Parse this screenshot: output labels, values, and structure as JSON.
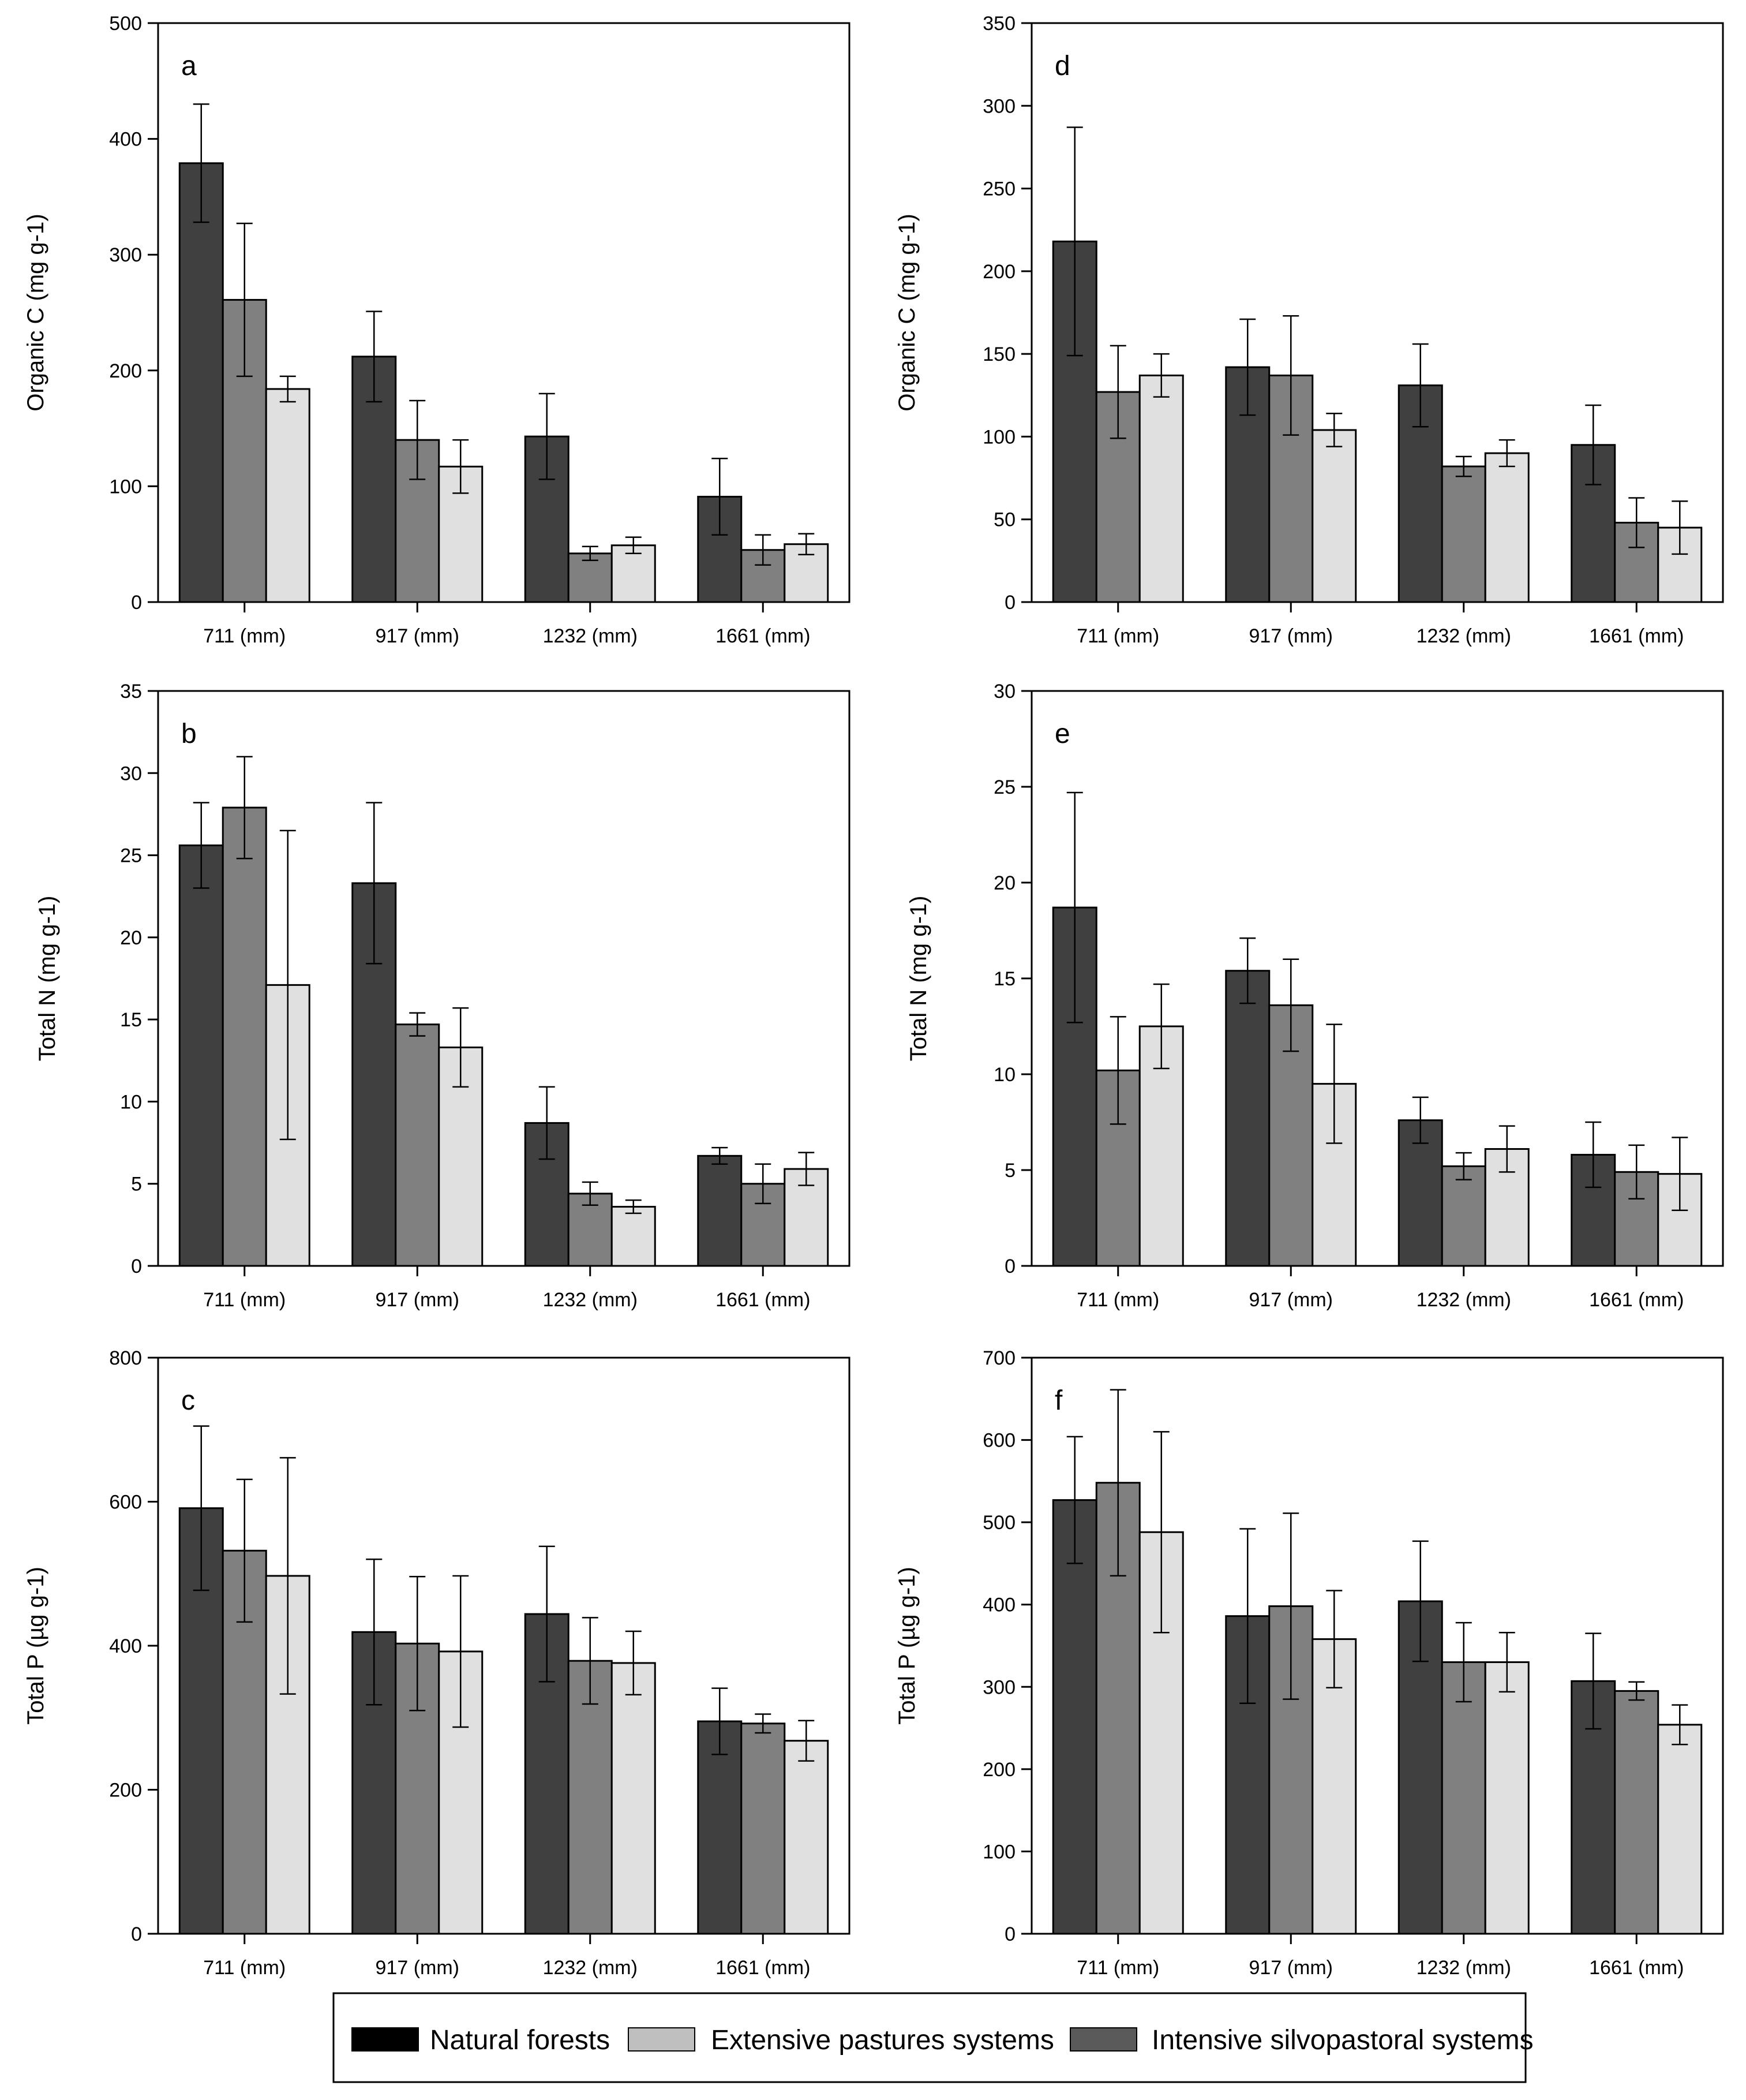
{
  "chart_data": [
    {
      "type": "bar",
      "panel": "a",
      "ylabel": "Organic C (mg g-1)",
      "ylim": [
        0,
        500
      ],
      "yticks": [
        "0",
        "100",
        "200",
        "300",
        "400",
        "500"
      ],
      "categories": [
        "711 (mm)",
        "917 (mm)",
        "1232 (mm)",
        "1661 (mm)"
      ],
      "series": [
        {
          "name": "Natural forests",
          "values": [
            379,
            212,
            143,
            91
          ],
          "errors": [
            51,
            39,
            37,
            33
          ]
        },
        {
          "name": "Intensive silvopastoral systems",
          "values": [
            261,
            140,
            42,
            45
          ],
          "errors": [
            66,
            34,
            6,
            13
          ]
        },
        {
          "name": "Extensive pastures systems",
          "values": [
            184,
            117,
            49,
            50
          ],
          "errors": [
            11,
            23,
            7,
            9
          ]
        }
      ]
    },
    {
      "type": "bar",
      "panel": "b",
      "ylabel": "Total N  (mg g-1)",
      "ylim": [
        0,
        35
      ],
      "yticks": [
        "0",
        "5",
        "10",
        "15",
        "20",
        "25",
        "30",
        "35"
      ],
      "categories": [
        "711 (mm)",
        "917 (mm)",
        "1232 (mm)",
        "1661 (mm)"
      ],
      "series": [
        {
          "name": "Natural forests",
          "values": [
            25.6,
            23.3,
            8.7,
            6.7
          ],
          "errors": [
            2.6,
            4.9,
            2.2,
            0.5
          ]
        },
        {
          "name": "Intensive silvopastoral systems",
          "values": [
            27.9,
            14.7,
            4.4,
            5.0
          ],
          "errors": [
            3.1,
            0.7,
            0.7,
            1.2
          ]
        },
        {
          "name": "Extensive pastures systems",
          "values": [
            17.1,
            13.3,
            3.6,
            5.9
          ],
          "errors": [
            9.4,
            2.4,
            0.4,
            1.0
          ]
        }
      ]
    },
    {
      "type": "bar",
      "panel": "c",
      "ylabel": "Total P (µg g-1)",
      "ylim": [
        0,
        800
      ],
      "yticks": [
        "0",
        "200",
        "400",
        "600",
        "800"
      ],
      "categories": [
        "711 (mm)",
        "917 (mm)",
        "1232 (mm)",
        "1661 (mm)"
      ],
      "series": [
        {
          "name": "Natural forests",
          "values": [
            591,
            419,
            444,
            295
          ],
          "errors": [
            114,
            101,
            94,
            46
          ]
        },
        {
          "name": "Intensive silvopastoral systems",
          "values": [
            532,
            403,
            379,
            292
          ],
          "errors": [
            99,
            93,
            60,
            13
          ]
        },
        {
          "name": "Extensive pastures systems",
          "values": [
            497,
            392,
            376,
            268
          ],
          "errors": [
            164,
            105,
            44,
            28
          ]
        }
      ]
    },
    {
      "type": "bar",
      "panel": "d",
      "ylabel": "Organic C (mg g-1)",
      "ylim": [
        0,
        350
      ],
      "yticks": [
        "0",
        "50",
        "100",
        "150",
        "200",
        "250",
        "300",
        "350"
      ],
      "categories": [
        "711 (mm)",
        "917 (mm)",
        "1232 (mm)",
        "1661 (mm)"
      ],
      "series": [
        {
          "name": "Natural forests",
          "values": [
            218,
            142,
            131,
            95
          ],
          "errors": [
            69,
            29,
            25,
            24
          ]
        },
        {
          "name": "Intensive silvopastoral systems",
          "values": [
            127,
            137,
            82,
            48
          ],
          "errors": [
            28,
            36,
            6,
            15
          ]
        },
        {
          "name": "Extensive pastures systems",
          "values": [
            137,
            104,
            90,
            45
          ],
          "errors": [
            13,
            10,
            8,
            16
          ]
        }
      ]
    },
    {
      "type": "bar",
      "panel": "e",
      "ylabel": "Total N  (mg g-1)",
      "ylim": [
        0,
        30
      ],
      "yticks": [
        "0",
        "5",
        "10",
        "15",
        "20",
        "25",
        "30"
      ],
      "categories": [
        "711 (mm)",
        "917 (mm)",
        "1232 (mm)",
        "1661 (mm)"
      ],
      "series": [
        {
          "name": "Natural forests",
          "values": [
            18.7,
            15.4,
            7.6,
            5.8
          ],
          "errors": [
            6.0,
            1.7,
            1.2,
            1.7
          ]
        },
        {
          "name": "Intensive silvopastoral systems",
          "values": [
            10.2,
            13.6,
            5.2,
            4.9
          ],
          "errors": [
            2.8,
            2.4,
            0.7,
            1.4
          ]
        },
        {
          "name": "Extensive pastures systems",
          "values": [
            12.5,
            9.5,
            6.1,
            4.8
          ],
          "errors": [
            2.2,
            3.1,
            1.2,
            1.9
          ]
        }
      ]
    },
    {
      "type": "bar",
      "panel": "f",
      "ylabel": "Total P (µg g-1)",
      "ylim": [
        0,
        700
      ],
      "yticks": [
        "0",
        "100",
        "200",
        "300",
        "400",
        "500",
        "600",
        "700"
      ],
      "categories": [
        "711 (mm)",
        "917 (mm)",
        "1232 (mm)",
        "1661 (mm)"
      ],
      "series": [
        {
          "name": "Natural forests",
          "values": [
            527,
            386,
            404,
            307
          ],
          "errors": [
            77,
            106,
            73,
            58
          ]
        },
        {
          "name": "Intensive silvopastoral systems",
          "values": [
            548,
            398,
            330,
            295
          ],
          "errors": [
            113,
            113,
            48,
            11
          ]
        },
        {
          "name": "Extensive pastures systems",
          "values": [
            488,
            358,
            330,
            254
          ],
          "errors": [
            122,
            59,
            36,
            24
          ]
        }
      ]
    }
  ],
  "legend": [
    {
      "label": "Natural forests",
      "color": "#000000"
    },
    {
      "label": "Extensive pastures systems",
      "color": "#bfbfbf"
    },
    {
      "label": "Intensive silvopastoral systems",
      "color": "#5a5a5a"
    }
  ],
  "series_colors": {
    "Natural forests": "#404040",
    "Intensive silvopastoral systems": "#808080",
    "Extensive pastures systems": "#e0e0e0"
  }
}
